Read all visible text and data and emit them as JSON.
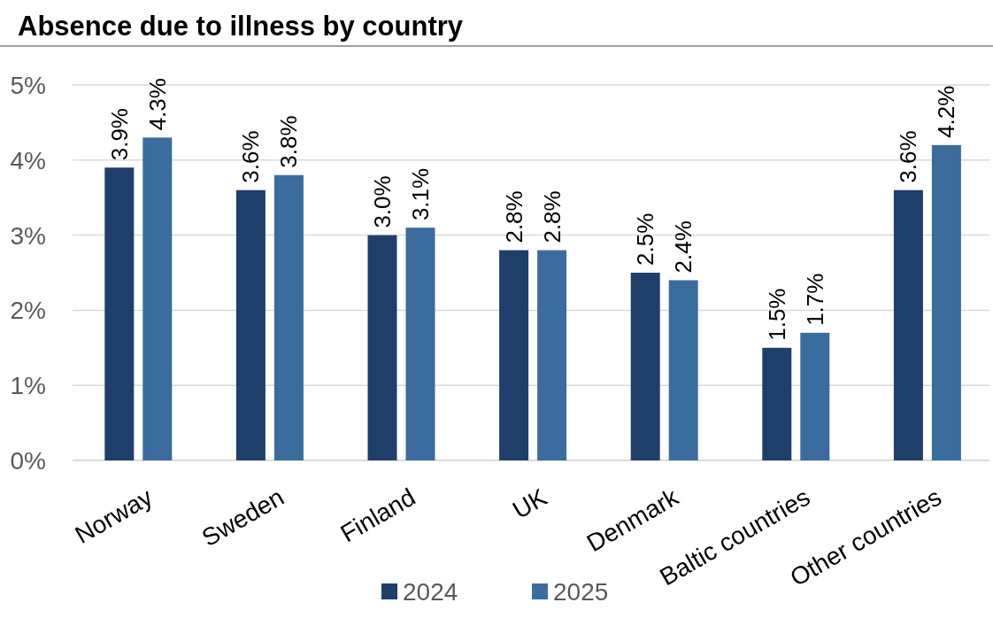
{
  "chart_data": {
    "type": "bar",
    "title": "Absence due to illness by country",
    "categories": [
      "Norway",
      "Sweden",
      "Finland",
      "UK",
      "Denmark",
      "Baltic countries",
      "Other countries"
    ],
    "series": [
      {
        "name": "2024",
        "color": "#1f3f6b",
        "values": [
          3.9,
          3.6,
          3.0,
          2.8,
          2.5,
          1.5,
          3.6
        ],
        "value_labels": [
          "3.9%",
          "3.6%",
          "3.0%",
          "2.8%",
          "2.5%",
          "1.5%",
          "3.6%"
        ]
      },
      {
        "name": "2025",
        "color": "#3a6d9e",
        "values": [
          4.3,
          3.8,
          3.1,
          2.8,
          2.4,
          1.7,
          4.2
        ],
        "value_labels": [
          "4.3%",
          "3.8%",
          "3.1%",
          "2.8%",
          "2.4%",
          "1.7%",
          "4.2%"
        ]
      }
    ],
    "ylim": [
      0,
      5
    ],
    "yticks": [
      {
        "value": 0,
        "label": "0%"
      },
      {
        "value": 1,
        "label": "1%"
      },
      {
        "value": 2,
        "label": "2%"
      },
      {
        "value": 3,
        "label": "3%"
      },
      {
        "value": 4,
        "label": "4%"
      },
      {
        "value": 5,
        "label": "5%"
      }
    ],
    "grid": "y",
    "legend": "bottom"
  }
}
